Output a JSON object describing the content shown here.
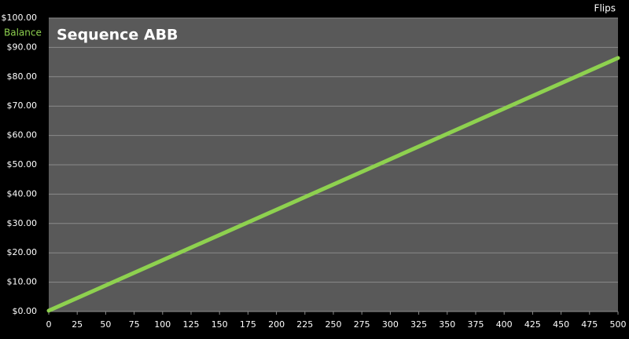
{
  "chart_data": {
    "type": "line",
    "title": "Sequence ABB",
    "y_label": "Balance",
    "x_label": "Flips",
    "x": [
      0,
      250,
      500
    ],
    "series": [
      {
        "name": "Balance",
        "color": "#8ed14f",
        "values": [
          0.3,
          43.3,
          86.4
        ]
      }
    ],
    "xlim": [
      0,
      500
    ],
    "ylim": [
      0,
      100
    ],
    "xticks": [
      0,
      25,
      50,
      75,
      100,
      125,
      150,
      175,
      200,
      225,
      250,
      275,
      300,
      325,
      350,
      375,
      400,
      425,
      450,
      475,
      500
    ],
    "yticks": [
      {
        "value": 0,
        "label": "$0.00"
      },
      {
        "value": 10,
        "label": "$10.00"
      },
      {
        "value": 20,
        "label": "$20.00"
      },
      {
        "value": 30,
        "label": "$30.00"
      },
      {
        "value": 40,
        "label": "$40.00"
      },
      {
        "value": 50,
        "label": "$50.00"
      },
      {
        "value": 60,
        "label": "$60.00"
      },
      {
        "value": 70,
        "label": "$70.00"
      },
      {
        "value": 80,
        "label": "$80.00"
      },
      {
        "value": 90,
        "label": "$90.00"
      },
      {
        "value": 100,
        "label": "$100.00"
      }
    ],
    "grid": true,
    "background": "#000000",
    "plot_background": "#595959"
  }
}
